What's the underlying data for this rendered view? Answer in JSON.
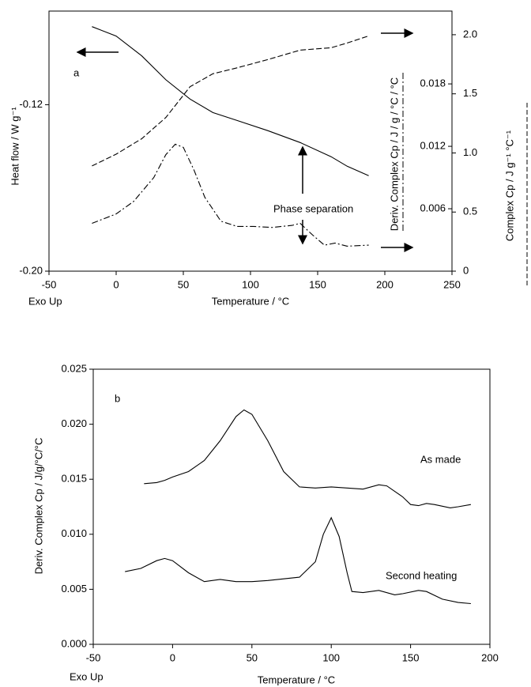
{
  "chart_data": [
    {
      "type": "line",
      "panel_label": "a",
      "x_label": "Temperature / °C",
      "y_label": "Heat flow / W g⁻¹",
      "y2_label": "Complex Cp / J g⁻¹ °C⁻¹",
      "y3_label": "Deriv. Complex Cp / J / g / °C / °C",
      "corner_note": "Exo Up",
      "annotation": "Phase separation",
      "xlim": [
        -50,
        250
      ],
      "xticks": [
        -50,
        0,
        50,
        100,
        150,
        200,
        250
      ],
      "ylim": [
        -0.2,
        -0.075
      ],
      "yticks": [
        {
          "value": -0.2,
          "label": "-0.20"
        },
        {
          "value": -0.12,
          "label": "-0.12"
        }
      ],
      "y2lim": [
        0,
        2.2
      ],
      "y2ticks": [
        0,
        0.5,
        {
          "value": 1,
          "label": "1.0"
        },
        1.5,
        {
          "value": 2,
          "label": "2.0"
        }
      ],
      "y3lim": [
        0,
        0.025
      ],
      "y3ticks": [
        0.006,
        0.012,
        0.018
      ],
      "series": [
        {
          "color": "#000000",
          "line_style": "solid",
          "axis": "y",
          "x": [
            -18,
            0,
            19,
            37,
            55,
            72,
            90,
            113,
            137,
            160,
            172,
            188
          ],
          "values": [
            -0.0825,
            -0.087,
            -0.0965,
            -0.108,
            -0.1173,
            -0.1238,
            -0.1276,
            -0.1325,
            -0.1382,
            -0.145,
            -0.1496,
            -0.1541
          ]
        },
        {
          "color": "#000000",
          "line_style": "dashed",
          "axis": "y2",
          "x": [
            -18,
            0,
            19,
            37,
            55,
            72,
            90,
            113,
            137,
            160,
            172,
            188
          ],
          "values": [
            0.89,
            0.99,
            1.12,
            1.3,
            1.56,
            1.67,
            1.72,
            1.79,
            1.87,
            1.89,
            1.93,
            1.99
          ]
        },
        {
          "color": "#000000",
          "line_style": "dashdot",
          "axis": "y3",
          "x": [
            -18,
            0,
            13,
            28,
            37,
            44,
            50,
            58,
            66,
            78,
            90,
            102,
            116,
            131,
            137,
            146,
            155,
            163,
            172,
            188
          ],
          "values": [
            0.0046,
            0.0055,
            0.0067,
            0.009,
            0.0112,
            0.0122,
            0.0119,
            0.0097,
            0.0071,
            0.0048,
            0.0043,
            0.0043,
            0.0042,
            0.0044,
            0.0046,
            0.0035,
            0.0025,
            0.0027,
            0.0024,
            0.0025
          ]
        }
      ]
    },
    {
      "type": "line",
      "panel_label": "b",
      "x_label": "Temperature / °C",
      "y_label": "Deriv. Complex Cp / J/g/°C/°C",
      "corner_note": "Exo Up",
      "xlim": [
        -50,
        200
      ],
      "xticks": [
        -50,
        0,
        50,
        100,
        150,
        200
      ],
      "ylim": [
        0,
        0.025
      ],
      "yticks": [
        {
          "value": 0,
          "label": "0.000"
        },
        0.005,
        {
          "value": 0.01,
          "label": "0.010"
        },
        0.015,
        {
          "value": 0.02,
          "label": "0.020"
        },
        0.025
      ],
      "series": [
        {
          "name": "As made",
          "color": "#000000",
          "line_style": "solid",
          "x": [
            -18,
            -10,
            -5,
            0,
            10,
            20,
            30,
            40,
            45,
            50,
            60,
            70,
            80,
            90,
            100,
            110,
            120,
            130,
            135,
            145,
            150,
            155,
            160,
            165,
            175,
            180,
            188
          ],
          "values": [
            0.0146,
            0.0147,
            0.0149,
            0.0152,
            0.0157,
            0.0167,
            0.0185,
            0.0207,
            0.0213,
            0.0209,
            0.0185,
            0.0157,
            0.0143,
            0.0142,
            0.0143,
            0.0142,
            0.0141,
            0.0145,
            0.0144,
            0.0134,
            0.0127,
            0.0126,
            0.0128,
            0.0127,
            0.0124,
            0.0125,
            0.0127
          ]
        },
        {
          "name": "Second heating",
          "color": "#000000",
          "line_style": "solid",
          "x": [
            -30,
            -20,
            -10,
            -5,
            0,
            10,
            20,
            30,
            40,
            50,
            60,
            80,
            90,
            95,
            100,
            105,
            110,
            113,
            120,
            130,
            140,
            145,
            155,
            160,
            170,
            180,
            188
          ],
          "values": [
            0.0066,
            0.0069,
            0.0076,
            0.0078,
            0.0076,
            0.0065,
            0.0057,
            0.0059,
            0.0057,
            0.0057,
            0.0058,
            0.0061,
            0.0075,
            0.01,
            0.0115,
            0.0098,
            0.0065,
            0.0048,
            0.0047,
            0.0049,
            0.0045,
            0.0046,
            0.0049,
            0.0048,
            0.0041,
            0.0038,
            0.0037
          ]
        }
      ]
    }
  ]
}
